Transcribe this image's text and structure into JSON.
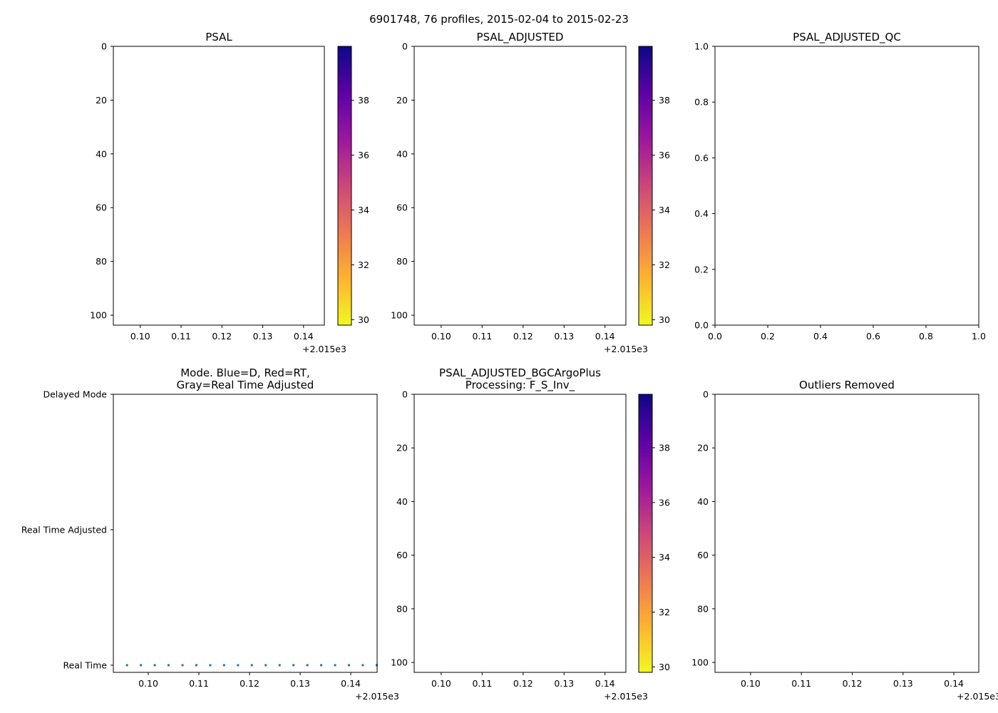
{
  "figure_title": "6901748, 76 profiles, 2015-02-04 to 2015-02-23",
  "colormap": [
    "#f0f921",
    "#fdb42f",
    "#ed7953",
    "#cc4778",
    "#9c179e",
    "#5c01a6",
    "#0d0887"
  ],
  "marker_color": "#1f77b4",
  "chart_data": [
    {
      "type": "heatmap",
      "title": [
        "PSAL"
      ],
      "xlim": [
        0.0934,
        0.1451
      ],
      "ylim": [
        103.7,
        0
      ],
      "xticks": [
        0.1,
        0.11,
        0.12,
        0.13,
        0.14
      ],
      "xtick_labels": [
        "0.10",
        "0.11",
        "0.12",
        "0.13",
        "0.14"
      ],
      "x_offset_label": "+2.015e3",
      "yticks": [
        0,
        20,
        40,
        60,
        80,
        100
      ],
      "ytick_labels": [
        "0",
        "20",
        "40",
        "60",
        "80",
        "100"
      ],
      "colorbar": {
        "range": [
          29.8,
          39.97
        ],
        "ticks": [
          30,
          32,
          34,
          36,
          38
        ],
        "tick_labels": [
          "30",
          "32",
          "34",
          "36",
          "38"
        ]
      },
      "values": []
    },
    {
      "type": "heatmap",
      "title": [
        "PSAL_ADJUSTED"
      ],
      "xlim": [
        0.0934,
        0.1451
      ],
      "ylim": [
        103.7,
        0
      ],
      "xticks": [
        0.1,
        0.11,
        0.12,
        0.13,
        0.14
      ],
      "xtick_labels": [
        "0.10",
        "0.11",
        "0.12",
        "0.13",
        "0.14"
      ],
      "x_offset_label": "+2.015e3",
      "yticks": [
        0,
        20,
        40,
        60,
        80,
        100
      ],
      "ytick_labels": [
        "0",
        "20",
        "40",
        "60",
        "80",
        "100"
      ],
      "colorbar": {
        "range": [
          29.8,
          39.97
        ],
        "ticks": [
          30,
          32,
          34,
          36,
          38
        ],
        "tick_labels": [
          "30",
          "32",
          "34",
          "36",
          "38"
        ]
      },
      "values": []
    },
    {
      "type": "scatter",
      "title": [
        "PSAL_ADJUSTED_QC"
      ],
      "xlim": [
        0,
        1
      ],
      "ylim": [
        0,
        1
      ],
      "xticks": [
        0,
        0.2,
        0.4,
        0.6,
        0.8,
        1.0
      ],
      "xtick_labels": [
        "0.0",
        "0.2",
        "0.4",
        "0.6",
        "0.8",
        "1.0"
      ],
      "yticks": [
        0,
        0.2,
        0.4,
        0.6,
        0.8,
        1.0
      ],
      "ytick_labels": [
        "0.0",
        "0.2",
        "0.4",
        "0.6",
        "0.8",
        "1.0"
      ],
      "values": []
    },
    {
      "type": "scatter",
      "title": [
        "Mode. Blue=D, Red=RT,",
        "Gray=Real Time Adjusted"
      ],
      "xlim": [
        0.0931,
        0.1452
      ],
      "ylim": [
        -0.053,
        2
      ],
      "xticks": [
        0.1,
        0.11,
        0.12,
        0.13,
        0.14
      ],
      "xtick_labels": [
        "0.10",
        "0.11",
        "0.12",
        "0.13",
        "0.14"
      ],
      "x_offset_label": "+2.015e3",
      "yticks": [
        0,
        1,
        2
      ],
      "ytick_labels": [
        "Real Time",
        "Real Time Adjusted",
        "Delayed Mode"
      ],
      "x": [
        0.0958,
        0.09854,
        0.10128,
        0.10402,
        0.10676,
        0.1095,
        0.11224,
        0.11498,
        0.11772,
        0.12046,
        0.1232,
        0.12594,
        0.12868,
        0.13142,
        0.13416,
        0.1369,
        0.13964,
        0.14238,
        0.14512
      ],
      "y": [
        0,
        0,
        0,
        0,
        0,
        0,
        0,
        0,
        0,
        0,
        0,
        0,
        0,
        0,
        0,
        0,
        0,
        0,
        0
      ]
    },
    {
      "type": "heatmap",
      "title": [
        "PSAL_ADJUSTED_BGCArgoPlus",
        "Processing: F_S_Inv_"
      ],
      "xlim": [
        0.0934,
        0.1451
      ],
      "ylim": [
        103.7,
        0
      ],
      "xticks": [
        0.1,
        0.11,
        0.12,
        0.13,
        0.14
      ],
      "xtick_labels": [
        "0.10",
        "0.11",
        "0.12",
        "0.13",
        "0.14"
      ],
      "x_offset_label": "+2.015e3",
      "yticks": [
        0,
        20,
        40,
        60,
        80,
        100
      ],
      "ytick_labels": [
        "0",
        "20",
        "40",
        "60",
        "80",
        "100"
      ],
      "colorbar": {
        "range": [
          29.8,
          39.95
        ],
        "ticks": [
          30,
          32,
          34,
          36,
          38
        ],
        "tick_labels": [
          "30",
          "32",
          "34",
          "36",
          "38"
        ]
      },
      "values": []
    },
    {
      "type": "scatter",
      "title": [
        "Outliers Removed"
      ],
      "xlim": [
        0.093,
        0.1449
      ],
      "ylim": [
        103.7,
        0
      ],
      "xticks": [
        0.1,
        0.11,
        0.12,
        0.13,
        0.14
      ],
      "xtick_labels": [
        "0.10",
        "0.11",
        "0.12",
        "0.13",
        "0.14"
      ],
      "x_offset_label": "+2.015e3",
      "yticks": [
        0,
        20,
        40,
        60,
        80,
        100
      ],
      "ytick_labels": [
        "0",
        "20",
        "40",
        "60",
        "80",
        "100"
      ],
      "values": []
    }
  ]
}
